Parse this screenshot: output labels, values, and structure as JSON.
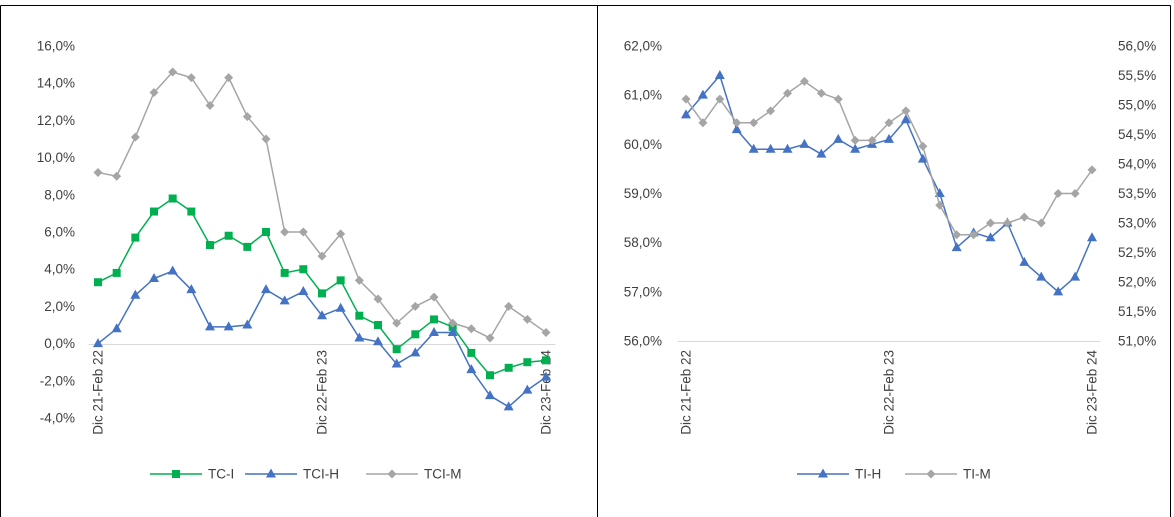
{
  "chart_data": [
    {
      "type": "line",
      "categories": [
        "Dic 21-Feb 22",
        "",
        "",
        "",
        "",
        "",
        "",
        "",
        "",
        "",
        "",
        "",
        "Dic 22-Feb 23",
        "",
        "",
        "",
        "",
        "",
        "",
        "",
        "",
        "",
        "",
        "",
        "Dic 23-Feb 24"
      ],
      "y_axis": {
        "lim": [
          -4,
          16
        ],
        "tick_labels": [
          "-4,0%",
          "-2,0%",
          "0,0%",
          "2,0%",
          "4,0%",
          "6,0%",
          "8,0%",
          "10,0%",
          "12,0%",
          "14,0%",
          "16,0%"
        ]
      },
      "grid": false,
      "legend": "bottom",
      "series": [
        {
          "name": "TC-I",
          "color": "#00B050",
          "marker": "square",
          "values": [
            3.3,
            3.8,
            5.7,
            7.1,
            7.8,
            7.1,
            5.3,
            5.8,
            5.2,
            6.0,
            3.8,
            4.0,
            2.7,
            3.4,
            1.5,
            1.0,
            -0.3,
            0.5,
            1.3,
            0.9,
            -0.5,
            -1.7,
            -1.3,
            -1.0,
            -0.9
          ]
        },
        {
          "name": "TCI-H",
          "color": "#4472C4",
          "marker": "triangle",
          "values": [
            0.0,
            0.8,
            2.6,
            3.5,
            3.9,
            2.9,
            0.9,
            0.9,
            1.0,
            2.9,
            2.3,
            2.8,
            1.5,
            1.9,
            0.3,
            0.1,
            -1.1,
            -0.5,
            0.6,
            0.6,
            -1.4,
            -2.8,
            -3.4,
            -2.5,
            -1.8
          ]
        },
        {
          "name": "TCI-M",
          "color": "#A5A5A5",
          "marker": "diamond",
          "values": [
            9.2,
            9.0,
            11.1,
            13.5,
            14.6,
            14.3,
            12.8,
            14.3,
            12.2,
            11.0,
            6.0,
            6.0,
            4.7,
            5.9,
            3.4,
            2.4,
            1.1,
            2.0,
            2.5,
            1.1,
            0.8,
            0.3,
            2.0,
            1.3,
            0.6
          ]
        }
      ]
    },
    {
      "type": "line",
      "categories": [
        "Dic 21-Feb 22",
        "",
        "",
        "",
        "",
        "",
        "",
        "",
        "",
        "",
        "",
        "",
        "Dic 22-Feb 23",
        "",
        "",
        "",
        "",
        "",
        "",
        "",
        "",
        "",
        "",
        "",
        "Dic 23-Feb 24"
      ],
      "y_axis": {
        "lim": [
          56,
          62
        ],
        "tick_labels": [
          "56,0%",
          "57,0%",
          "58,0%",
          "59,0%",
          "60,0%",
          "61,0%",
          "62,0%"
        ]
      },
      "y_axis_right": {
        "lim": [
          51,
          56
        ],
        "tick_labels": [
          "51,0%",
          "51,5%",
          "52,0%",
          "52,5%",
          "53,0%",
          "53,5%",
          "54,0%",
          "54,5%",
          "55,0%",
          "55,5%",
          "56,0%"
        ]
      },
      "grid": false,
      "legend": "bottom",
      "series": [
        {
          "name": "TI-H",
          "color": "#4472C4",
          "marker": "triangle",
          "axis": "left",
          "values": [
            60.6,
            61.0,
            61.4,
            60.3,
            59.9,
            59.9,
            59.9,
            60.0,
            59.8,
            60.1,
            59.9,
            60.0,
            60.1,
            60.5,
            59.7,
            59.0,
            57.9,
            58.2,
            58.1,
            58.4,
            57.6,
            57.3,
            57.0,
            57.3,
            58.1
          ]
        },
        {
          "name": "TI-M",
          "color": "#A5A5A5",
          "marker": "diamond",
          "axis": "right",
          "values": [
            55.1,
            54.7,
            55.1,
            54.7,
            54.7,
            54.9,
            55.2,
            55.4,
            55.2,
            55.1,
            54.4,
            54.4,
            54.7,
            54.9,
            54.3,
            53.3,
            52.8,
            52.8,
            53.0,
            53.0,
            53.1,
            53.0,
            53.5,
            53.5,
            53.9
          ]
        }
      ]
    }
  ]
}
